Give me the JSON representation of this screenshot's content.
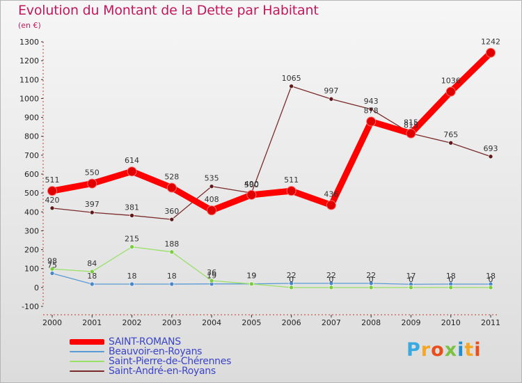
{
  "header": {
    "title": "Evolution du Montant de la Dette par Habitant",
    "subtitle": "(en €)"
  },
  "logo": {
    "text": "Proxiti",
    "letter_colors": [
      "#3aa9e0",
      "#f5a623",
      "#e94e1b",
      "#7cc242",
      "#1f8fd0",
      "#f5a623",
      "#e94e1b"
    ]
  },
  "chart_data": {
    "type": "line",
    "x": [
      2000,
      2001,
      2002,
      2003,
      2004,
      2005,
      2006,
      2007,
      2008,
      2009,
      2010,
      2011
    ],
    "ylim": [
      -100,
      1300
    ],
    "yticks": [
      -100,
      0,
      100,
      200,
      300,
      400,
      500,
      600,
      700,
      800,
      900,
      1000,
      1100,
      1200,
      1300
    ],
    "grid": false,
    "legend_position": "bottom-left",
    "series": [
      {
        "name": "SAINT-ROMANS",
        "color": "#ff0000",
        "marker": "#e00000",
        "values": [
          511,
          550,
          614,
          528,
          408,
          490,
          511,
          436,
          878,
          815,
          1036,
          1242
        ],
        "labels": [
          "511",
          "550",
          "614",
          "528",
          "408",
          "490",
          "511",
          "436",
          "878",
          "815",
          "1036",
          "1242"
        ]
      },
      {
        "name": "Beauvoir-en-Royans",
        "color": "#5b9bd5",
        "marker": "#4a86c8",
        "values": [
          75,
          18,
          18,
          18,
          19,
          19,
          22,
          22,
          22,
          17,
          18,
          18
        ],
        "labels": [
          "75",
          "18",
          "18",
          "18",
          "19",
          "19",
          "22",
          "22",
          "22",
          "17",
          "18",
          "18"
        ]
      },
      {
        "name": "Saint-Pierre-de-Chérennes",
        "color": "#99e066",
        "marker": "#7ccc3f",
        "values": [
          98,
          84,
          215,
          188,
          36,
          19,
          0,
          0,
          0,
          0,
          0,
          0
        ],
        "labels": [
          "98",
          "84",
          "215",
          "188",
          "36",
          "19",
          "0",
          "0",
          "0",
          "0",
          "0",
          "0"
        ]
      },
      {
        "name": "Saint-André-en-Royans",
        "color": "#7a2a2a",
        "marker": "#5e1a1a",
        "values": [
          420,
          397,
          381,
          360,
          535,
          500,
          1065,
          997,
          943,
          815,
          765,
          693
        ],
        "labels": [
          "420",
          "397",
          "381",
          "360",
          "535",
          "500",
          "1065",
          "997",
          "943",
          "815",
          "765",
          "693"
        ]
      }
    ]
  }
}
